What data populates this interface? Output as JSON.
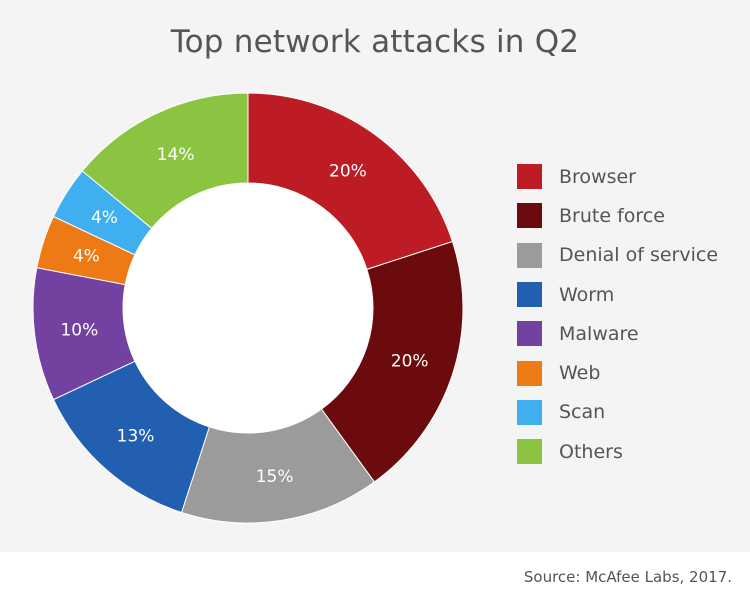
{
  "colors": {
    "Browser": "#bd1c25",
    "Brute force": "#6b0b0d",
    "Denial of service": "#9b9b9b",
    "Worm": "#225fb0",
    "Malware": "#7341a0",
    "Web": "#ee7a16",
    "Scan": "#40aff0",
    "Others": "#8bc441"
  },
  "chart_data": {
    "type": "pie",
    "title": "Top network attacks in Q2",
    "donut": true,
    "legend_position": "right",
    "categories": [
      "Browser",
      "Brute force",
      "Denial of service",
      "Worm",
      "Malware",
      "Web",
      "Scan",
      "Others"
    ],
    "values": [
      20,
      20,
      15,
      13,
      10,
      4,
      4,
      14
    ],
    "value_labels": [
      "20%",
      "20%",
      "15%",
      "13%",
      "10%",
      "4%",
      "4%",
      "14%"
    ]
  },
  "source": "Source: McAfee Labs, 2017."
}
